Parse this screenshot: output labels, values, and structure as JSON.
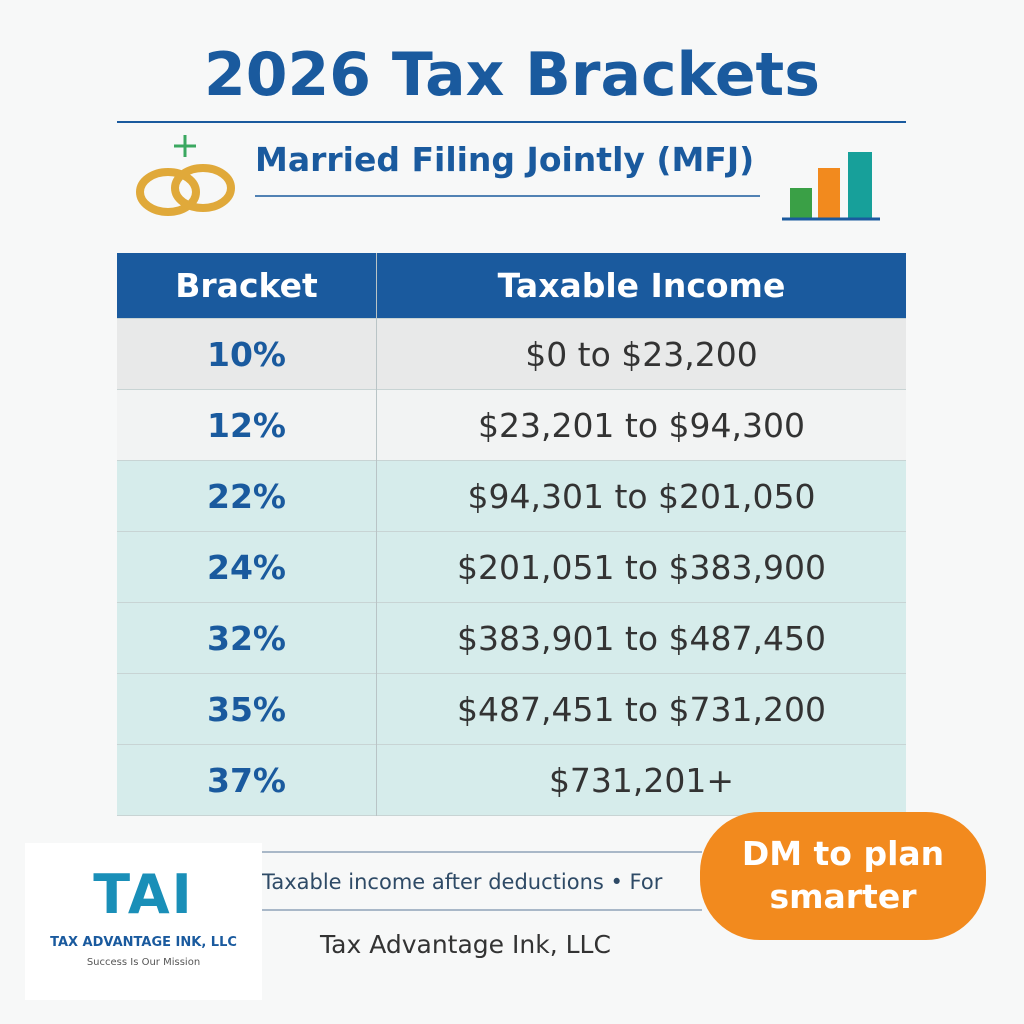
{
  "header": {
    "title": "2026 Tax Brackets",
    "subtitle": "Married Filing Jointly (MFJ)"
  },
  "table": {
    "columns": [
      "Bracket",
      "Taxable Income"
    ],
    "rows": [
      [
        "10%",
        "$0 to $23,200"
      ],
      [
        "12%",
        "$23,201 to $94,300"
      ],
      [
        "22%",
        "$94,301 to $201,050"
      ],
      [
        "24%",
        "$201,051 to $383,900"
      ],
      [
        "32%",
        "$383,901 to $487,450"
      ],
      [
        "35%",
        "$487,451 to $731,200"
      ],
      [
        "37%",
        "$731,201+"
      ]
    ]
  },
  "footer": {
    "note": "Taxable income after deductions • For",
    "company": "Tax Advantage Ink, LLC",
    "callout": "DM to plan smarter"
  },
  "logo": {
    "mark": "TAI",
    "name": "TAX ADVANTAGE INK, LLC",
    "tagline": "Success Is Our Mission"
  }
}
